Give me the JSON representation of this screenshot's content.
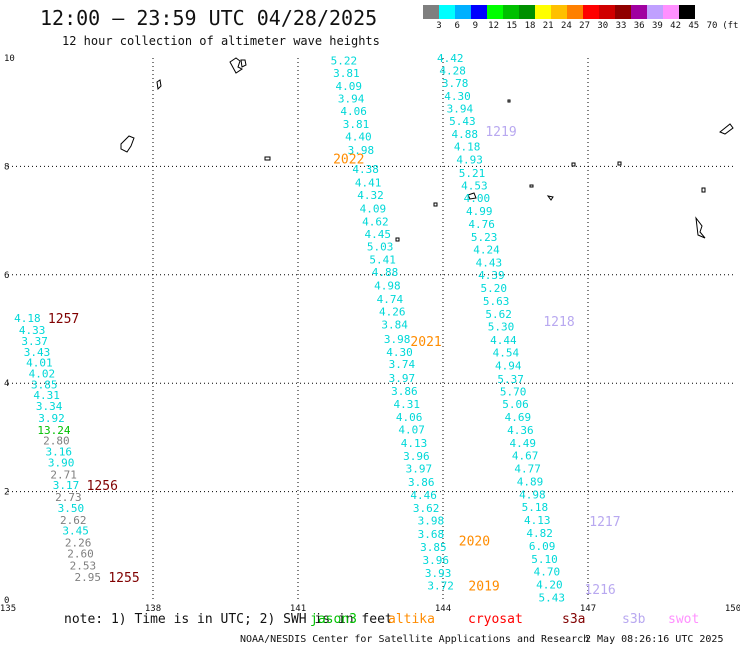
{
  "title": "12:00 – 23:59 UTC 04/28/2025",
  "subtitle": "12 hour collection of altimeter wave heights",
  "scale": {
    "labels": [
      "3",
      "6",
      "9",
      "12",
      "15",
      "18",
      "21",
      "24",
      "27",
      "30",
      "33",
      "36",
      "39",
      "42",
      "45",
      "70",
      "(ft)"
    ],
    "colors": [
      "#7f7f7f",
      "#00ffff",
      "#00b0ff",
      "#0000ff",
      "#00ff00",
      "#00c000",
      "#009000",
      "#ffff00",
      "#ffc000",
      "#ff8000",
      "#ff0000",
      "#d00000",
      "#900000",
      "#a000a0",
      "#c0a0ff",
      "#ff90ff",
      "#000000"
    ]
  },
  "axes": {
    "x_ticks": [
      "135",
      "138",
      "141",
      "144",
      "147",
      "150"
    ],
    "y_ticks": [
      "0",
      "2",
      "4",
      "6",
      "8",
      "10"
    ]
  },
  "tracks": [
    {
      "id": "1257",
      "label_color": "#800000",
      "label_lon": 136.15,
      "label_lat": 5.2,
      "points": [
        [
          135.4,
          5.2,
          "4.18",
          "#00d8d8"
        ],
        [
          135.5,
          4.98,
          "4.33",
          "#00d8d8"
        ],
        [
          135.55,
          4.78,
          "3.37",
          "#00d8d8"
        ],
        [
          135.6,
          4.58,
          "3.43",
          "#00d8d8"
        ],
        [
          135.65,
          4.38,
          "4.01",
          "#00d8d8"
        ],
        [
          135.7,
          4.18,
          "4.02",
          "#00d8d8"
        ],
        [
          135.75,
          3.98,
          "3.85",
          "#00d8d8"
        ],
        [
          135.8,
          3.78,
          "4.31",
          "#00d8d8"
        ],
        [
          135.85,
          3.58,
          "3.34",
          "#00d8d8"
        ],
        [
          135.9,
          3.36,
          "3.92",
          "#00d8d8"
        ],
        [
          135.95,
          3.14,
          "13.24",
          "#00c000"
        ],
        [
          136.0,
          2.94,
          "2.80",
          "#7f7f7f"
        ],
        [
          136.05,
          2.74,
          "3.16",
          "#00d8d8"
        ],
        [
          136.1,
          2.54,
          "3.90",
          "#00d8d8"
        ],
        [
          136.15,
          2.32,
          "2.71",
          "#7f7f7f"
        ],
        [
          136.2,
          2.12,
          "3.17",
          "#00d8d8"
        ]
      ]
    },
    {
      "id": "1256",
      "label_color": "#800000",
      "label_lon": 136.95,
      "label_lat": 2.12,
      "points": [
        [
          136.25,
          1.9,
          "2.73",
          "#7f7f7f"
        ],
        [
          136.3,
          1.7,
          "3.50",
          "#00d8d8"
        ],
        [
          136.35,
          1.48,
          "2.62",
          "#7f7f7f"
        ],
        [
          136.4,
          1.28,
          "3.45",
          "#00d8d8"
        ],
        [
          136.45,
          1.06,
          "2.26",
          "#7f7f7f"
        ],
        [
          136.5,
          0.86,
          "2.60",
          "#7f7f7f"
        ],
        [
          136.55,
          0.64,
          "2.53",
          "#7f7f7f"
        ],
        [
          136.65,
          0.42,
          "2.95",
          "#7f7f7f"
        ]
      ]
    },
    {
      "id": "1255",
      "label_color": "#800000",
      "label_lon": 137.4,
      "label_lat": 0.42,
      "points": []
    },
    {
      "id": "2022",
      "label_color": "#ff8c00",
      "label_lon": 142.05,
      "label_lat": 8.15,
      "points": [
        [
          141.95,
          9.95,
          "5.22",
          "#00d8d8"
        ],
        [
          142.0,
          9.72,
          "3.81",
          "#00d8d8"
        ],
        [
          142.05,
          9.48,
          "4.09",
          "#00d8d8"
        ],
        [
          142.1,
          9.25,
          "3.94",
          "#00d8d8"
        ],
        [
          142.15,
          9.02,
          "4.06",
          "#00d8d8"
        ],
        [
          142.2,
          8.78,
          "3.81",
          "#00d8d8"
        ],
        [
          142.25,
          8.55,
          "4.40",
          "#00d8d8"
        ],
        [
          142.3,
          8.3,
          "3.98",
          "#00d8d8"
        ]
      ]
    },
    {
      "id": "2021",
      "label_color": "#ff8c00",
      "label_lon": 143.65,
      "label_lat": 4.78,
      "points": [
        [
          142.4,
          7.95,
          "4.38",
          "#00d8d8"
        ],
        [
          142.45,
          7.7,
          "4.41",
          "#00d8d8"
        ],
        [
          142.5,
          7.47,
          "4.32",
          "#00d8d8"
        ],
        [
          142.55,
          7.22,
          "4.09",
          "#00d8d8"
        ],
        [
          142.6,
          6.98,
          "4.62",
          "#00d8d8"
        ],
        [
          142.65,
          6.75,
          "4.45",
          "#00d8d8"
        ],
        [
          142.7,
          6.52,
          "5.03",
          "#00d8d8"
        ],
        [
          142.75,
          6.28,
          "5.41",
          "#00d8d8"
        ],
        [
          142.8,
          6.05,
          "4.88",
          "#00d8d8"
        ],
        [
          142.85,
          5.8,
          "4.98",
          "#00d8d8"
        ],
        [
          142.9,
          5.55,
          "4.74",
          "#00d8d8"
        ],
        [
          142.95,
          5.32,
          "4.26",
          "#00d8d8"
        ],
        [
          143.0,
          5.08,
          "3.84",
          "#00d8d8"
        ],
        [
          143.05,
          4.82,
          "3.98",
          "#00d8d8"
        ],
        [
          143.1,
          4.58,
          "4.30",
          "#00d8d8"
        ],
        [
          143.15,
          4.35,
          "3.74",
          "#00d8d8"
        ],
        [
          143.15,
          4.1,
          "3.97",
          "#00d8d8"
        ],
        [
          143.2,
          3.86,
          "3.86",
          "#00d8d8"
        ],
        [
          143.25,
          3.62,
          "4.31",
          "#00d8d8"
        ],
        [
          143.3,
          3.38,
          "4.06",
          "#00d8d8"
        ],
        [
          143.35,
          3.15,
          "4.07",
          "#00d8d8"
        ],
        [
          143.4,
          2.9,
          "4.13",
          "#00d8d8"
        ],
        [
          143.45,
          2.66,
          "3.96",
          "#00d8d8"
        ],
        [
          143.5,
          2.43,
          "3.97",
          "#00d8d8"
        ],
        [
          143.55,
          2.18,
          "3.86",
          "#00d8d8"
        ]
      ]
    },
    {
      "id": "2020",
      "label_color": "#ff8c00",
      "label_lon": 144.65,
      "label_lat": 1.1,
      "points": [
        [
          143.6,
          1.94,
          "4.46",
          "#00d8d8"
        ],
        [
          143.65,
          1.7,
          "3.62",
          "#00d8d8"
        ],
        [
          143.75,
          1.47,
          "3.98",
          "#00d8d8"
        ],
        [
          143.75,
          1.22,
          "3.68",
          "#00d8d8"
        ],
        [
          143.8,
          0.98,
          "3.85",
          "#00d8d8"
        ],
        [
          143.85,
          0.74,
          "3.96",
          "#00d8d8"
        ],
        [
          143.9,
          0.5,
          "3.93",
          "#00d8d8"
        ],
        [
          143.95,
          0.27,
          "3.72",
          "#00d8d8"
        ]
      ]
    },
    {
      "id": "2019",
      "label_color": "#ff8c00",
      "label_lon": 144.85,
      "label_lat": 0.27,
      "points": []
    },
    {
      "id": "1219",
      "label_color": "#b8a8f0",
      "label_lon": 145.2,
      "label_lat": 8.65,
      "points": [
        [
          144.15,
          10.0,
          "4.42",
          "#00d8d8"
        ],
        [
          144.2,
          9.77,
          "4.28",
          "#00d8d8"
        ],
        [
          144.25,
          9.54,
          "3.78",
          "#00d8d8"
        ],
        [
          144.3,
          9.3,
          "4.30",
          "#00d8d8"
        ],
        [
          144.35,
          9.07,
          "3.94",
          "#00d8d8"
        ],
        [
          144.4,
          8.84,
          "5.43",
          "#00d8d8"
        ],
        [
          144.45,
          8.6,
          "4.88",
          "#00d8d8"
        ],
        [
          144.5,
          8.37,
          "4.18",
          "#00d8d8"
        ],
        [
          144.55,
          8.13,
          "4.93",
          "#00d8d8"
        ]
      ]
    },
    {
      "id": "1218",
      "label_color": "#b8a8f0",
      "label_lon": 146.4,
      "label_lat": 5.15,
      "points": [
        [
          144.6,
          7.88,
          "5.21",
          "#00d8d8"
        ],
        [
          144.65,
          7.65,
          "4.53",
          "#00d8d8"
        ],
        [
          144.7,
          7.42,
          "4.00",
          "#00d8d8"
        ],
        [
          144.75,
          7.18,
          "4.99",
          "#00d8d8"
        ],
        [
          144.8,
          6.94,
          "4.76",
          "#00d8d8"
        ],
        [
          144.85,
          6.7,
          "5.23",
          "#00d8d8"
        ],
        [
          144.9,
          6.47,
          "4.24",
          "#00d8d8"
        ],
        [
          144.95,
          6.23,
          "4.43",
          "#00d8d8"
        ],
        [
          145.0,
          6.0,
          "4.39",
          "#00d8d8"
        ],
        [
          145.05,
          5.76,
          "5.20",
          "#00d8d8"
        ],
        [
          145.1,
          5.52,
          "5.63",
          "#00d8d8"
        ],
        [
          145.15,
          5.28,
          "5.62",
          "#00d8d8"
        ],
        [
          145.2,
          5.05,
          "5.30",
          "#00d8d8"
        ]
      ]
    },
    {
      "id": "1217",
      "label_color": "#b8a8f0",
      "label_lon": 147.35,
      "label_lat": 1.46,
      "points": [
        [
          145.25,
          4.8,
          "4.44",
          "#00d8d8"
        ],
        [
          145.3,
          4.57,
          "4.54",
          "#00d8d8"
        ],
        [
          145.35,
          4.33,
          "4.94",
          "#00d8d8"
        ],
        [
          145.4,
          4.08,
          "5.37",
          "#00d8d8"
        ],
        [
          145.45,
          3.85,
          "5.70",
          "#00d8d8"
        ],
        [
          145.5,
          3.62,
          "5.06",
          "#00d8d8"
        ],
        [
          145.55,
          3.38,
          "4.69",
          "#00d8d8"
        ],
        [
          145.6,
          3.14,
          "4.36",
          "#00d8d8"
        ],
        [
          145.65,
          2.9,
          "4.49",
          "#00d8d8"
        ],
        [
          145.7,
          2.67,
          "4.67",
          "#00d8d8"
        ],
        [
          145.75,
          2.43,
          "4.77",
          "#00d8d8"
        ],
        [
          145.8,
          2.19,
          "4.89",
          "#00d8d8"
        ],
        [
          145.85,
          1.95,
          "4.98",
          "#00d8d8"
        ],
        [
          145.9,
          1.72,
          "5.18",
          "#00d8d8"
        ],
        [
          145.95,
          1.48,
          "4.13",
          "#00d8d8"
        ]
      ]
    },
    {
      "id": "1216",
      "label_color": "#b8a8f0",
      "label_lon": 147.25,
      "label_lat": 0.2,
      "points": [
        [
          146.0,
          1.24,
          "4.82",
          "#00d8d8"
        ],
        [
          146.05,
          1.0,
          "6.09",
          "#00d8d8"
        ],
        [
          146.1,
          0.76,
          "5.10",
          "#00d8d8"
        ],
        [
          146.15,
          0.53,
          "4.70",
          "#00d8d8"
        ],
        [
          146.2,
          0.29,
          "4.20",
          "#00d8d8"
        ],
        [
          146.25,
          0.05,
          "5.43",
          "#00d8d8"
        ]
      ]
    }
  ],
  "footer": {
    "note": "note: 1) Time is in UTC; 2) SWH is in feet",
    "satellites": [
      {
        "name": "jason3",
        "color": "#00c000"
      },
      {
        "name": "altika",
        "color": "#ff8c00"
      },
      {
        "name": "cryosat",
        "color": "#ff0000"
      },
      {
        "name": "s3a",
        "color": "#800000"
      },
      {
        "name": "s3b",
        "color": "#b8a8f0"
      },
      {
        "name": "swot",
        "color": "#ff90ff"
      }
    ],
    "credit": "NOAA/NESDIS Center for Satellite Applications and Research",
    "timestamp": "2 May 08:26:16 UTC 2025"
  }
}
